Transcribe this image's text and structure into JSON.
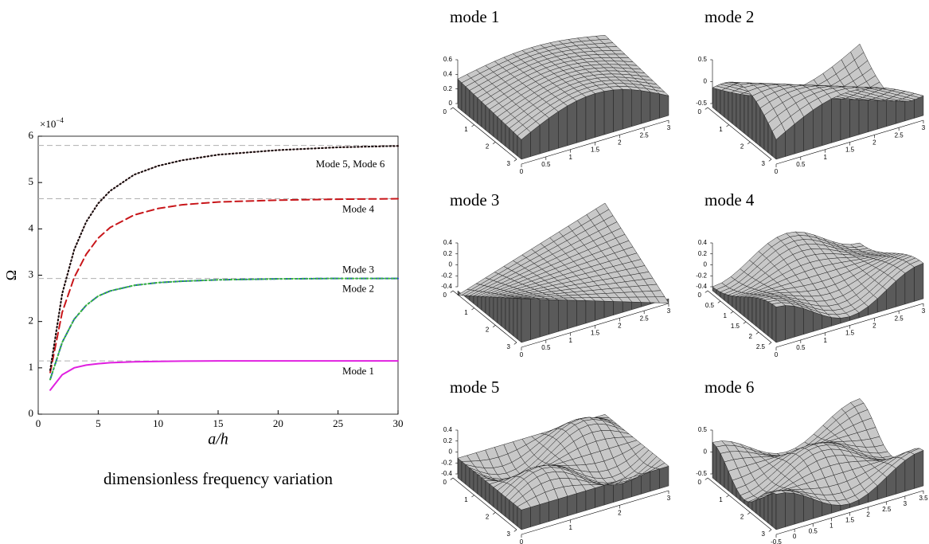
{
  "chart_data": [
    {
      "type": "line",
      "title": "dimensionless frequency variation",
      "x_label": "a/h",
      "y_label": "Ω",
      "scale_label": {
        "base": "×10",
        "exponent": "−4"
      },
      "xlim": [
        0,
        30
      ],
      "ylim": [
        0,
        6
      ],
      "xticks": [
        0,
        5,
        10,
        15,
        20,
        25,
        30
      ],
      "yticks": [
        0,
        1,
        2,
        3,
        4,
        5,
        6
      ],
      "reference_lines": [
        1.15,
        2.93,
        4.65,
        5.8
      ],
      "reference_color": "#b0b0b0",
      "x": [
        1,
        2,
        3,
        4,
        5,
        6,
        8,
        10,
        12,
        15,
        20,
        25,
        30
      ],
      "series": [
        {
          "name": "Mode 1",
          "color": "#e020e0",
          "style": "solid",
          "values": [
            0.52,
            0.85,
            1.0,
            1.06,
            1.09,
            1.11,
            1.13,
            1.14,
            1.145,
            1.15,
            1.15,
            1.15,
            1.15
          ]
        },
        {
          "name": "Mode 2",
          "color": "#1a3fd0",
          "style": "dashdot",
          "values": [
            0.75,
            1.55,
            2.05,
            2.35,
            2.55,
            2.66,
            2.78,
            2.84,
            2.87,
            2.9,
            2.92,
            2.93,
            2.93
          ]
        },
        {
          "name": "Mode 3",
          "color": "#3cb83c",
          "style": "dotted",
          "values": [
            0.75,
            1.55,
            2.05,
            2.35,
            2.55,
            2.66,
            2.78,
            2.84,
            2.87,
            2.9,
            2.92,
            2.93,
            2.93
          ]
        },
        {
          "name": "Mode 4",
          "color": "#c8161a",
          "style": "dashed",
          "values": [
            0.9,
            2.2,
            2.95,
            3.45,
            3.8,
            4.03,
            4.3,
            4.44,
            4.52,
            4.58,
            4.62,
            4.64,
            4.65
          ]
        },
        {
          "color": "#c8161a",
          "style": "dotted",
          "values": [
            0.95,
            2.6,
            3.55,
            4.15,
            4.55,
            4.82,
            5.17,
            5.36,
            5.48,
            5.6,
            5.7,
            5.76,
            5.79
          ]
        },
        {
          "color": "#111111",
          "style": "dotted",
          "values": [
            0.95,
            2.6,
            3.55,
            4.15,
            4.55,
            4.82,
            5.17,
            5.36,
            5.48,
            5.6,
            5.7,
            5.76,
            5.79
          ]
        }
      ],
      "annotations": [
        "Mode 5, Mode 6"
      ]
    },
    {
      "type": "surface",
      "title": "mode 1",
      "zticks": [
        0,
        0.2,
        0.4,
        0.6
      ],
      "yticks": [
        0,
        1,
        2,
        3
      ],
      "xticks": [
        0,
        0.5,
        1,
        1.5,
        2,
        2.5,
        3
      ]
    },
    {
      "type": "surface",
      "title": "mode 2",
      "zticks": [
        -0.5,
        0,
        0.5
      ],
      "yticks": [
        0,
        1,
        2,
        3
      ],
      "xticks": [
        0,
        0.5,
        1,
        1.5,
        2,
        2.5,
        3
      ]
    },
    {
      "type": "surface",
      "title": "mode 3",
      "zticks": [
        -0.4,
        -0.2,
        0,
        0.2,
        0.4
      ],
      "yticks": [
        0,
        1,
        2,
        3
      ],
      "xticks": [
        0,
        0.5,
        1,
        1.5,
        2,
        2.5,
        3
      ]
    },
    {
      "type": "surface",
      "title": "mode 4",
      "zticks": [
        -0.4,
        -0.2,
        0,
        0.2,
        0.4
      ],
      "yticks": [
        0,
        0.5,
        1,
        1.5,
        2,
        2.5
      ],
      "xticks": [
        0,
        0.5,
        1,
        1.5,
        2,
        2.5,
        3
      ]
    },
    {
      "type": "surface",
      "title": "mode 5",
      "zticks": [
        -0.4,
        -0.2,
        0,
        0.2,
        0.4
      ],
      "yticks": [
        0,
        1,
        2,
        3
      ],
      "xticks": [
        0,
        1,
        2,
        3
      ]
    },
    {
      "type": "surface",
      "title": "mode 6",
      "zticks": [
        -0.5,
        0,
        0.5
      ],
      "yticks": [
        0,
        1,
        2,
        3
      ],
      "xticks": [
        -0.5,
        0,
        0.5,
        1,
        1.5,
        2,
        2.5,
        3,
        3.5
      ]
    }
  ]
}
